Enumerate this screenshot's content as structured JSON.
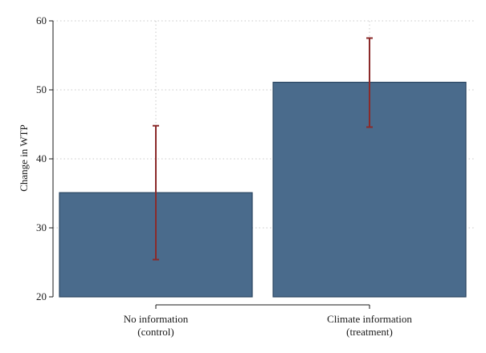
{
  "chart_data": {
    "type": "bar",
    "title": "",
    "xlabel": "",
    "ylabel": "Change in WTP",
    "ylim": [
      20,
      60
    ],
    "yticks": [
      20,
      30,
      40,
      50,
      60
    ],
    "grid": true,
    "categories": [
      {
        "line1": "No information",
        "line2": "(control)"
      },
      {
        "line1": "Climate information",
        "line2": "(treatment)"
      }
    ],
    "values": [
      35.1,
      51.1
    ],
    "error_bars": [
      {
        "low": 25.4,
        "high": 44.8
      },
      {
        "low": 44.6,
        "high": 57.5
      }
    ],
    "colors": {
      "bar_fill": "#4a6b8c",
      "bar_stroke": "#2b4662",
      "error_bar": "#8b2a2a",
      "grid": "#c8c8c8",
      "axis": "#1a1a1a"
    }
  }
}
